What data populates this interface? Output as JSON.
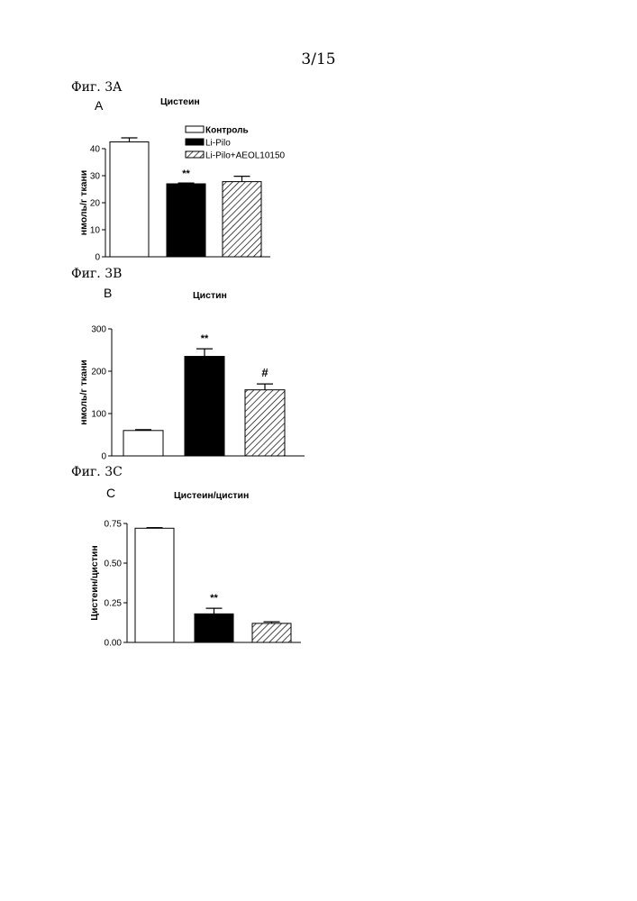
{
  "page": {
    "number": "3/15"
  },
  "figures": [
    {
      "caption": "Фиг. 3A",
      "letter": "A"
    },
    {
      "caption": "Фиг. 3B",
      "letter": "B"
    },
    {
      "caption": "Фиг. 3C",
      "letter": "C"
    }
  ],
  "legend": [
    {
      "label": "Контроль",
      "pattern": "white"
    },
    {
      "label": "Li-Pilo",
      "pattern": "black"
    },
    {
      "label": "Li-Pilo+AEOL10150",
      "pattern": "hatched"
    }
  ],
  "chart_data": [
    {
      "type": "bar",
      "title": "Цистеин",
      "ylabel": "нмоль/г ткани",
      "ylim": [
        0,
        45
      ],
      "yticks": [
        0,
        10,
        20,
        30,
        40
      ],
      "categories": [
        "Контроль",
        "Li-Pilo",
        "Li-Pilo+AEOL10150"
      ],
      "values": [
        42.5,
        27,
        27.8
      ],
      "errors": [
        1.5,
        0.3,
        2.0
      ],
      "annotations": [
        "",
        "**",
        ""
      ],
      "fills": [
        "white",
        "black",
        "hatched"
      ],
      "legend": "top-right"
    },
    {
      "type": "bar",
      "title": "Цистин",
      "ylabel": "нмоль/г ткани",
      "ylim": [
        0,
        300
      ],
      "yticks": [
        0,
        100,
        200,
        300
      ],
      "categories": [
        "Контроль",
        "Li-Pilo",
        "Li-Pilo+AEOL10150"
      ],
      "values": [
        60,
        235,
        156
      ],
      "errors": [
        2,
        18,
        14
      ],
      "annotations": [
        "",
        "**",
        "#"
      ],
      "fills": [
        "white",
        "black",
        "hatched"
      ]
    },
    {
      "type": "bar",
      "title": "Цистеин/цистин",
      "ylabel": "Цистеин/цистин",
      "ylim": [
        0,
        0.75
      ],
      "yticks": [
        0,
        0.25,
        0.5,
        0.75
      ],
      "ytick_labels": [
        "0.00",
        "0.25",
        "0.50",
        "0.75"
      ],
      "categories": [
        "Контроль",
        "Li-Pilo",
        "Li-Pilo+AEOL10150"
      ],
      "values": [
        0.72,
        0.18,
        0.12
      ],
      "errors": [
        0.004,
        0.035,
        0.01
      ],
      "annotations": [
        "",
        "**",
        ""
      ],
      "fills": [
        "white",
        "black",
        "hatched"
      ]
    }
  ]
}
